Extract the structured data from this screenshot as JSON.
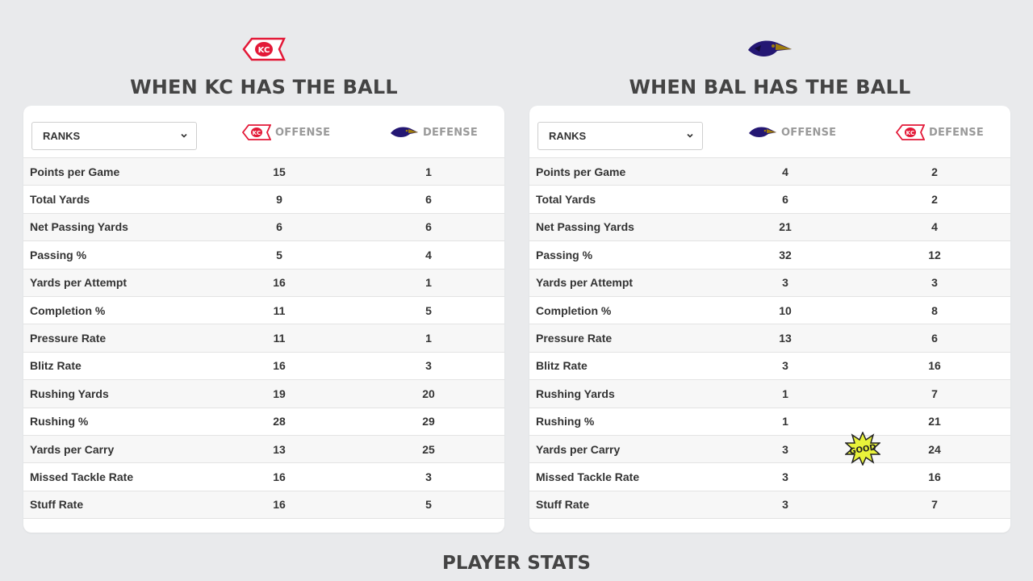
{
  "panels": [
    {
      "team_logo": "kc-chiefs-logo",
      "title": "WHEN KC HAS THE BALL",
      "select_value": "RANKS",
      "offense_label": "OFFENSE",
      "offense_logo": "kc-chiefs-logo",
      "defense_label": "DEFENSE",
      "defense_logo": "bal-ravens-logo",
      "rows": [
        {
          "label": "Points per Game",
          "offense": "15",
          "defense": "1"
        },
        {
          "label": "Total Yards",
          "offense": "9",
          "defense": "6"
        },
        {
          "label": "Net Passing Yards",
          "offense": "6",
          "defense": "6"
        },
        {
          "label": "Passing %",
          "offense": "5",
          "defense": "4"
        },
        {
          "label": "Yards per Attempt",
          "offense": "16",
          "defense": "1"
        },
        {
          "label": "Completion %",
          "offense": "11",
          "defense": "5"
        },
        {
          "label": "Pressure Rate",
          "offense": "11",
          "defense": "1"
        },
        {
          "label": "Blitz Rate",
          "offense": "16",
          "defense": "3"
        },
        {
          "label": "Rushing Yards",
          "offense": "19",
          "defense": "20"
        },
        {
          "label": "Rushing %",
          "offense": "28",
          "defense": "29"
        },
        {
          "label": "Yards per Carry",
          "offense": "13",
          "defense": "25"
        },
        {
          "label": "Missed Tackle Rate",
          "offense": "16",
          "defense": "3"
        },
        {
          "label": "Stuff Rate",
          "offense": "16",
          "defense": "5"
        }
      ]
    },
    {
      "team_logo": "bal-ravens-logo",
      "title": "WHEN BAL HAS THE BALL",
      "select_value": "RANKS",
      "offense_label": "OFFENSE",
      "offense_logo": "bal-ravens-logo",
      "defense_label": "DEFENSE",
      "defense_logo": "kc-chiefs-logo",
      "rows": [
        {
          "label": "Points per Game",
          "offense": "4",
          "defense": "2"
        },
        {
          "label": "Total Yards",
          "offense": "6",
          "defense": "2"
        },
        {
          "label": "Net Passing Yards",
          "offense": "21",
          "defense": "4"
        },
        {
          "label": "Passing %",
          "offense": "32",
          "defense": "12"
        },
        {
          "label": "Yards per Attempt",
          "offense": "3",
          "defense": "3"
        },
        {
          "label": "Completion %",
          "offense": "10",
          "defense": "8"
        },
        {
          "label": "Pressure Rate",
          "offense": "13",
          "defense": "6"
        },
        {
          "label": "Blitz Rate",
          "offense": "3",
          "defense": "16"
        },
        {
          "label": "Rushing Yards",
          "offense": "1",
          "defense": "7"
        },
        {
          "label": "Rushing %",
          "offense": "1",
          "defense": "21"
        },
        {
          "label": "Yards per Carry",
          "offense": "3",
          "defense": "24"
        },
        {
          "label": "Missed Tackle Rate",
          "offense": "3",
          "defense": "16"
        },
        {
          "label": "Stuff Rate",
          "offense": "3",
          "defense": "7"
        }
      ]
    }
  ],
  "badge": {
    "text": "GOOD",
    "icon": "good-starburst-icon"
  },
  "footer_title": "PLAYER STATS",
  "colors": {
    "background": "#e9eaec",
    "kc_red": "#e31837",
    "bal_purple": "#241773",
    "bal_gold": "#9e7c0c",
    "badge_yellow": "#e8f23a"
  }
}
